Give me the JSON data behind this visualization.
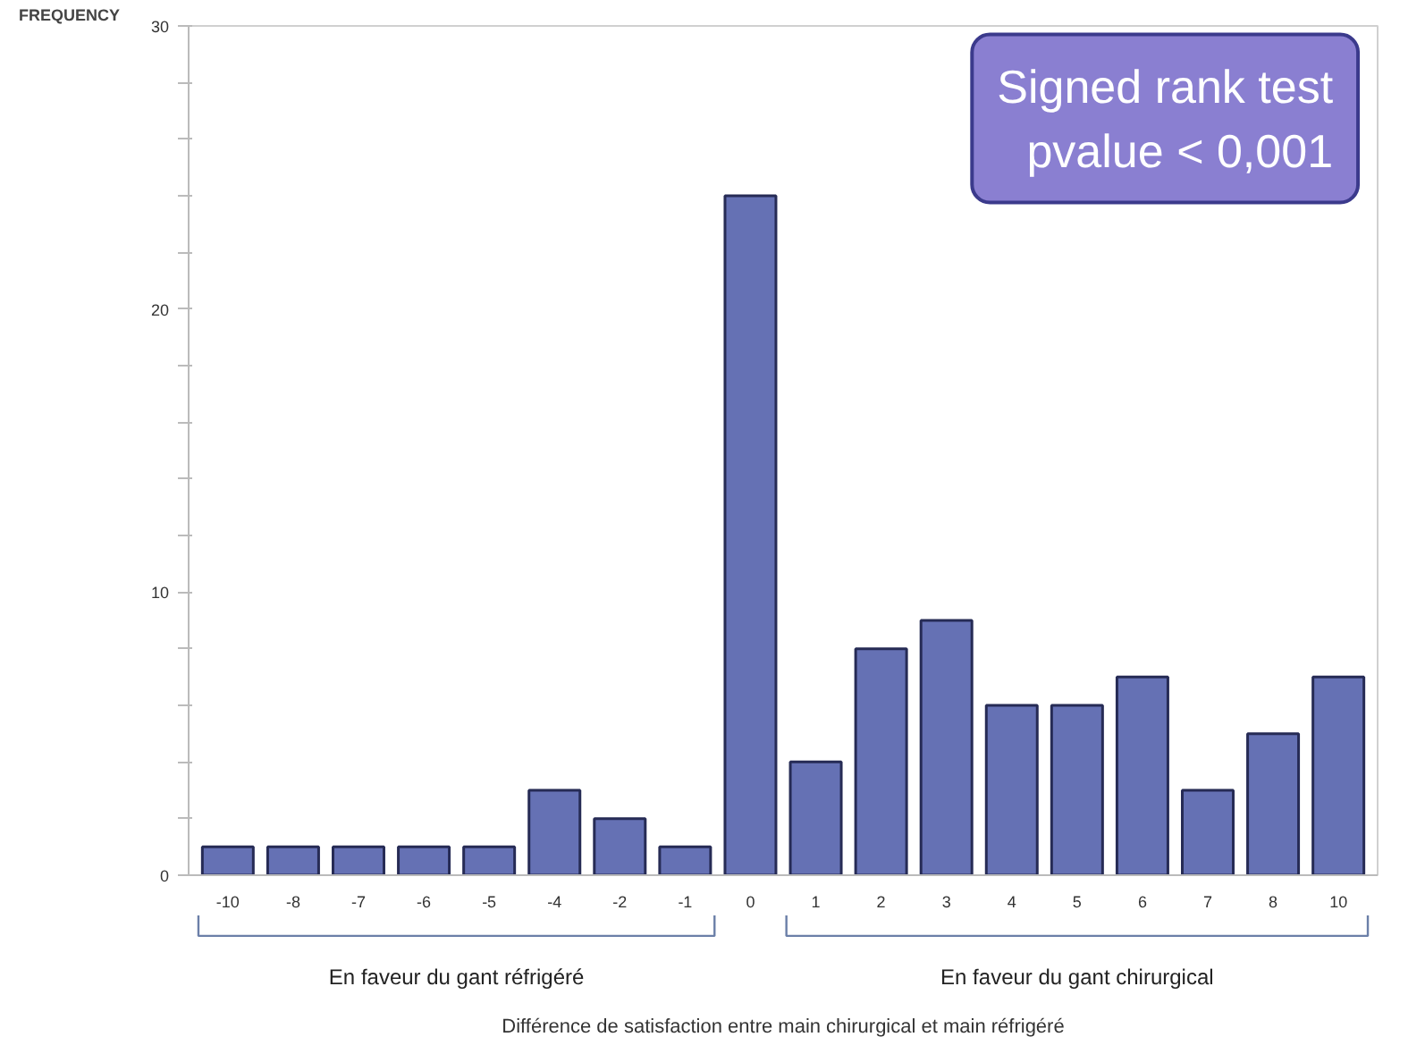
{
  "chart_data": {
    "type": "bar",
    "ylabel": "FREQUENCY",
    "categories": [
      "-10",
      "-8",
      "-7",
      "-6",
      "-5",
      "-4",
      "-2",
      "-1",
      "0",
      "1",
      "2",
      "3",
      "4",
      "5",
      "6",
      "7",
      "8",
      "10"
    ],
    "values": [
      1,
      1,
      1,
      1,
      1,
      3,
      2,
      1,
      24,
      4,
      8,
      9,
      6,
      6,
      7,
      3,
      5,
      7
    ],
    "color": "#6571b4",
    "ylim": [
      0,
      30
    ],
    "yticks": [
      0,
      {
        "value": 2,
        "label": null
      },
      {
        "value": 4,
        "label": null
      },
      {
        "value": 6,
        "label": null
      },
      {
        "value": 8,
        "label": null
      },
      10,
      {
        "value": 12,
        "label": null
      },
      {
        "value": 14,
        "label": null
      },
      {
        "value": 16,
        "label": null
      },
      {
        "value": 18,
        "label": null
      },
      20,
      {
        "value": 22,
        "label": null
      },
      {
        "value": 24,
        "label": null
      },
      {
        "value": 26,
        "label": null
      },
      {
        "value": 28,
        "label": null
      },
      30
    ],
    "grid": false,
    "annotations": [
      "Signed rank test\npvalue < 0,001",
      "En faveur du gant réfrigéré",
      "En faveur du gant chirurgical",
      "Différence de satisfaction entre main chirurgical et main réfrigéré"
    ]
  }
}
